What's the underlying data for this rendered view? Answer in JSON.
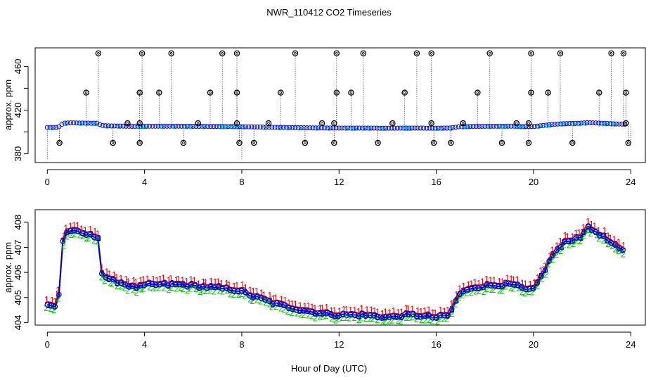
{
  "chart_data": [
    {
      "type": "scatter",
      "title": "NWR_110412  CO2 Timeseries",
      "ylabel": "approx. ppm",
      "xlabel": "",
      "xlim": [
        -0.5,
        24.6
      ],
      "ylim": [
        372,
        477
      ],
      "xticks": [
        0,
        4,
        8,
        12,
        16,
        20,
        24
      ],
      "yticks": [
        380,
        400,
        420,
        440,
        460
      ],
      "ytick_labels": [
        "380",
        "",
        "420",
        "",
        "460"
      ],
      "baseline": 405,
      "baseline_ref": 405,
      "outlier_high": [
        [
          1.6,
          436
        ],
        [
          2.1,
          472
        ],
        [
          3.8,
          436
        ],
        [
          3.9,
          472
        ],
        [
          4.6,
          436
        ],
        [
          5.1,
          472
        ],
        [
          6.7,
          436
        ],
        [
          7.2,
          472
        ],
        [
          7.8,
          472
        ],
        [
          7.8,
          436
        ],
        [
          9.6,
          436
        ],
        [
          10.2,
          472
        ],
        [
          11.9,
          436
        ],
        [
          11.9,
          472
        ],
        [
          12.5,
          436
        ],
        [
          13.0,
          472
        ],
        [
          14.7,
          436
        ],
        [
          15.2,
          472
        ],
        [
          15.8,
          472
        ],
        [
          17.7,
          436
        ],
        [
          18.2,
          472
        ],
        [
          19.9,
          472
        ],
        [
          19.9,
          436
        ],
        [
          20.6,
          436
        ],
        [
          21.1,
          472
        ],
        [
          22.7,
          436
        ],
        [
          23.2,
          472
        ],
        [
          23.7,
          472
        ],
        [
          23.8,
          436
        ]
      ],
      "outlier_mid": [
        [
          3.3,
          408
        ],
        [
          3.8,
          408
        ],
        [
          6.2,
          408
        ],
        [
          7.8,
          408
        ],
        [
          9.1,
          408
        ],
        [
          11.3,
          408
        ],
        [
          11.8,
          408
        ],
        [
          14.2,
          408
        ],
        [
          15.8,
          408
        ],
        [
          17.1,
          408
        ],
        [
          19.3,
          408
        ],
        [
          19.8,
          408
        ],
        [
          23.8,
          408
        ]
      ],
      "outlier_low": [
        [
          0.5,
          390
        ],
        [
          2.7,
          390
        ],
        [
          3.8,
          390
        ],
        [
          5.6,
          390
        ],
        [
          7.9,
          390
        ],
        [
          8.5,
          390
        ],
        [
          10.6,
          390
        ],
        [
          11.8,
          390
        ],
        [
          13.6,
          390
        ],
        [
          15.9,
          390
        ],
        [
          16.6,
          390
        ],
        [
          18.7,
          390
        ],
        [
          19.8,
          390
        ],
        [
          21.6,
          390
        ],
        [
          23.9,
          390
        ]
      ]
    },
    {
      "type": "line",
      "title": "",
      "ylabel": "approx. ppm",
      "xlabel": "Hour of Day (UTC)",
      "xlim": [
        -0.5,
        24.6
      ],
      "ylim": [
        403.9,
        408.5
      ],
      "xticks": [
        0,
        4,
        8,
        12,
        16,
        20,
        24
      ],
      "yticks": [
        404,
        405,
        406,
        407,
        408
      ],
      "series": [
        {
          "name": "1",
          "color": "#ee0000",
          "offset": 0.2
        },
        {
          "name": "2",
          "color": "#00cc00",
          "offset": -0.15
        },
        {
          "name": "3",
          "color": "#0000cc",
          "offset": 0.0
        }
      ],
      "mean_color": "#0000cc",
      "anchors": [
        [
          0,
          404.7
        ],
        [
          0.35,
          404.65
        ],
        [
          0.5,
          405.2
        ],
        [
          0.65,
          407.4
        ],
        [
          0.9,
          407.7
        ],
        [
          1.2,
          407.6
        ],
        [
          1.6,
          407.5
        ],
        [
          2.1,
          407.4
        ],
        [
          2.2,
          406.0
        ],
        [
          2.5,
          405.7
        ],
        [
          3.0,
          405.6
        ],
        [
          3.5,
          405.4
        ],
        [
          3.8,
          405.4
        ],
        [
          4.1,
          405.5
        ],
        [
          5.5,
          405.5
        ],
        [
          6.5,
          405.4
        ],
        [
          7.8,
          405.3
        ],
        [
          8.3,
          405.1
        ],
        [
          9.2,
          404.8
        ],
        [
          10.0,
          404.6
        ],
        [
          11.0,
          404.4
        ],
        [
          12.0,
          404.3
        ],
        [
          13.0,
          404.3
        ],
        [
          14.0,
          404.2
        ],
        [
          15.0,
          404.3
        ],
        [
          15.9,
          404.2
        ],
        [
          16.0,
          404.2
        ],
        [
          16.55,
          404.3
        ],
        [
          16.9,
          405.1
        ],
        [
          17.5,
          405.4
        ],
        [
          18.5,
          405.5
        ],
        [
          19.2,
          405.5
        ],
        [
          19.6,
          405.3
        ],
        [
          20.0,
          405.3
        ],
        [
          20.3,
          405.8
        ],
        [
          20.8,
          406.7
        ],
        [
          21.3,
          407.2
        ],
        [
          21.9,
          407.4
        ],
        [
          22.2,
          407.8
        ],
        [
          22.6,
          407.6
        ],
        [
          23.0,
          407.3
        ],
        [
          23.4,
          407.0
        ],
        [
          23.8,
          406.8
        ]
      ],
      "gaps": [
        [
          0.6,
          0.62
        ],
        [
          7.85,
          7.95
        ],
        [
          15.95,
          16.0
        ]
      ]
    }
  ]
}
